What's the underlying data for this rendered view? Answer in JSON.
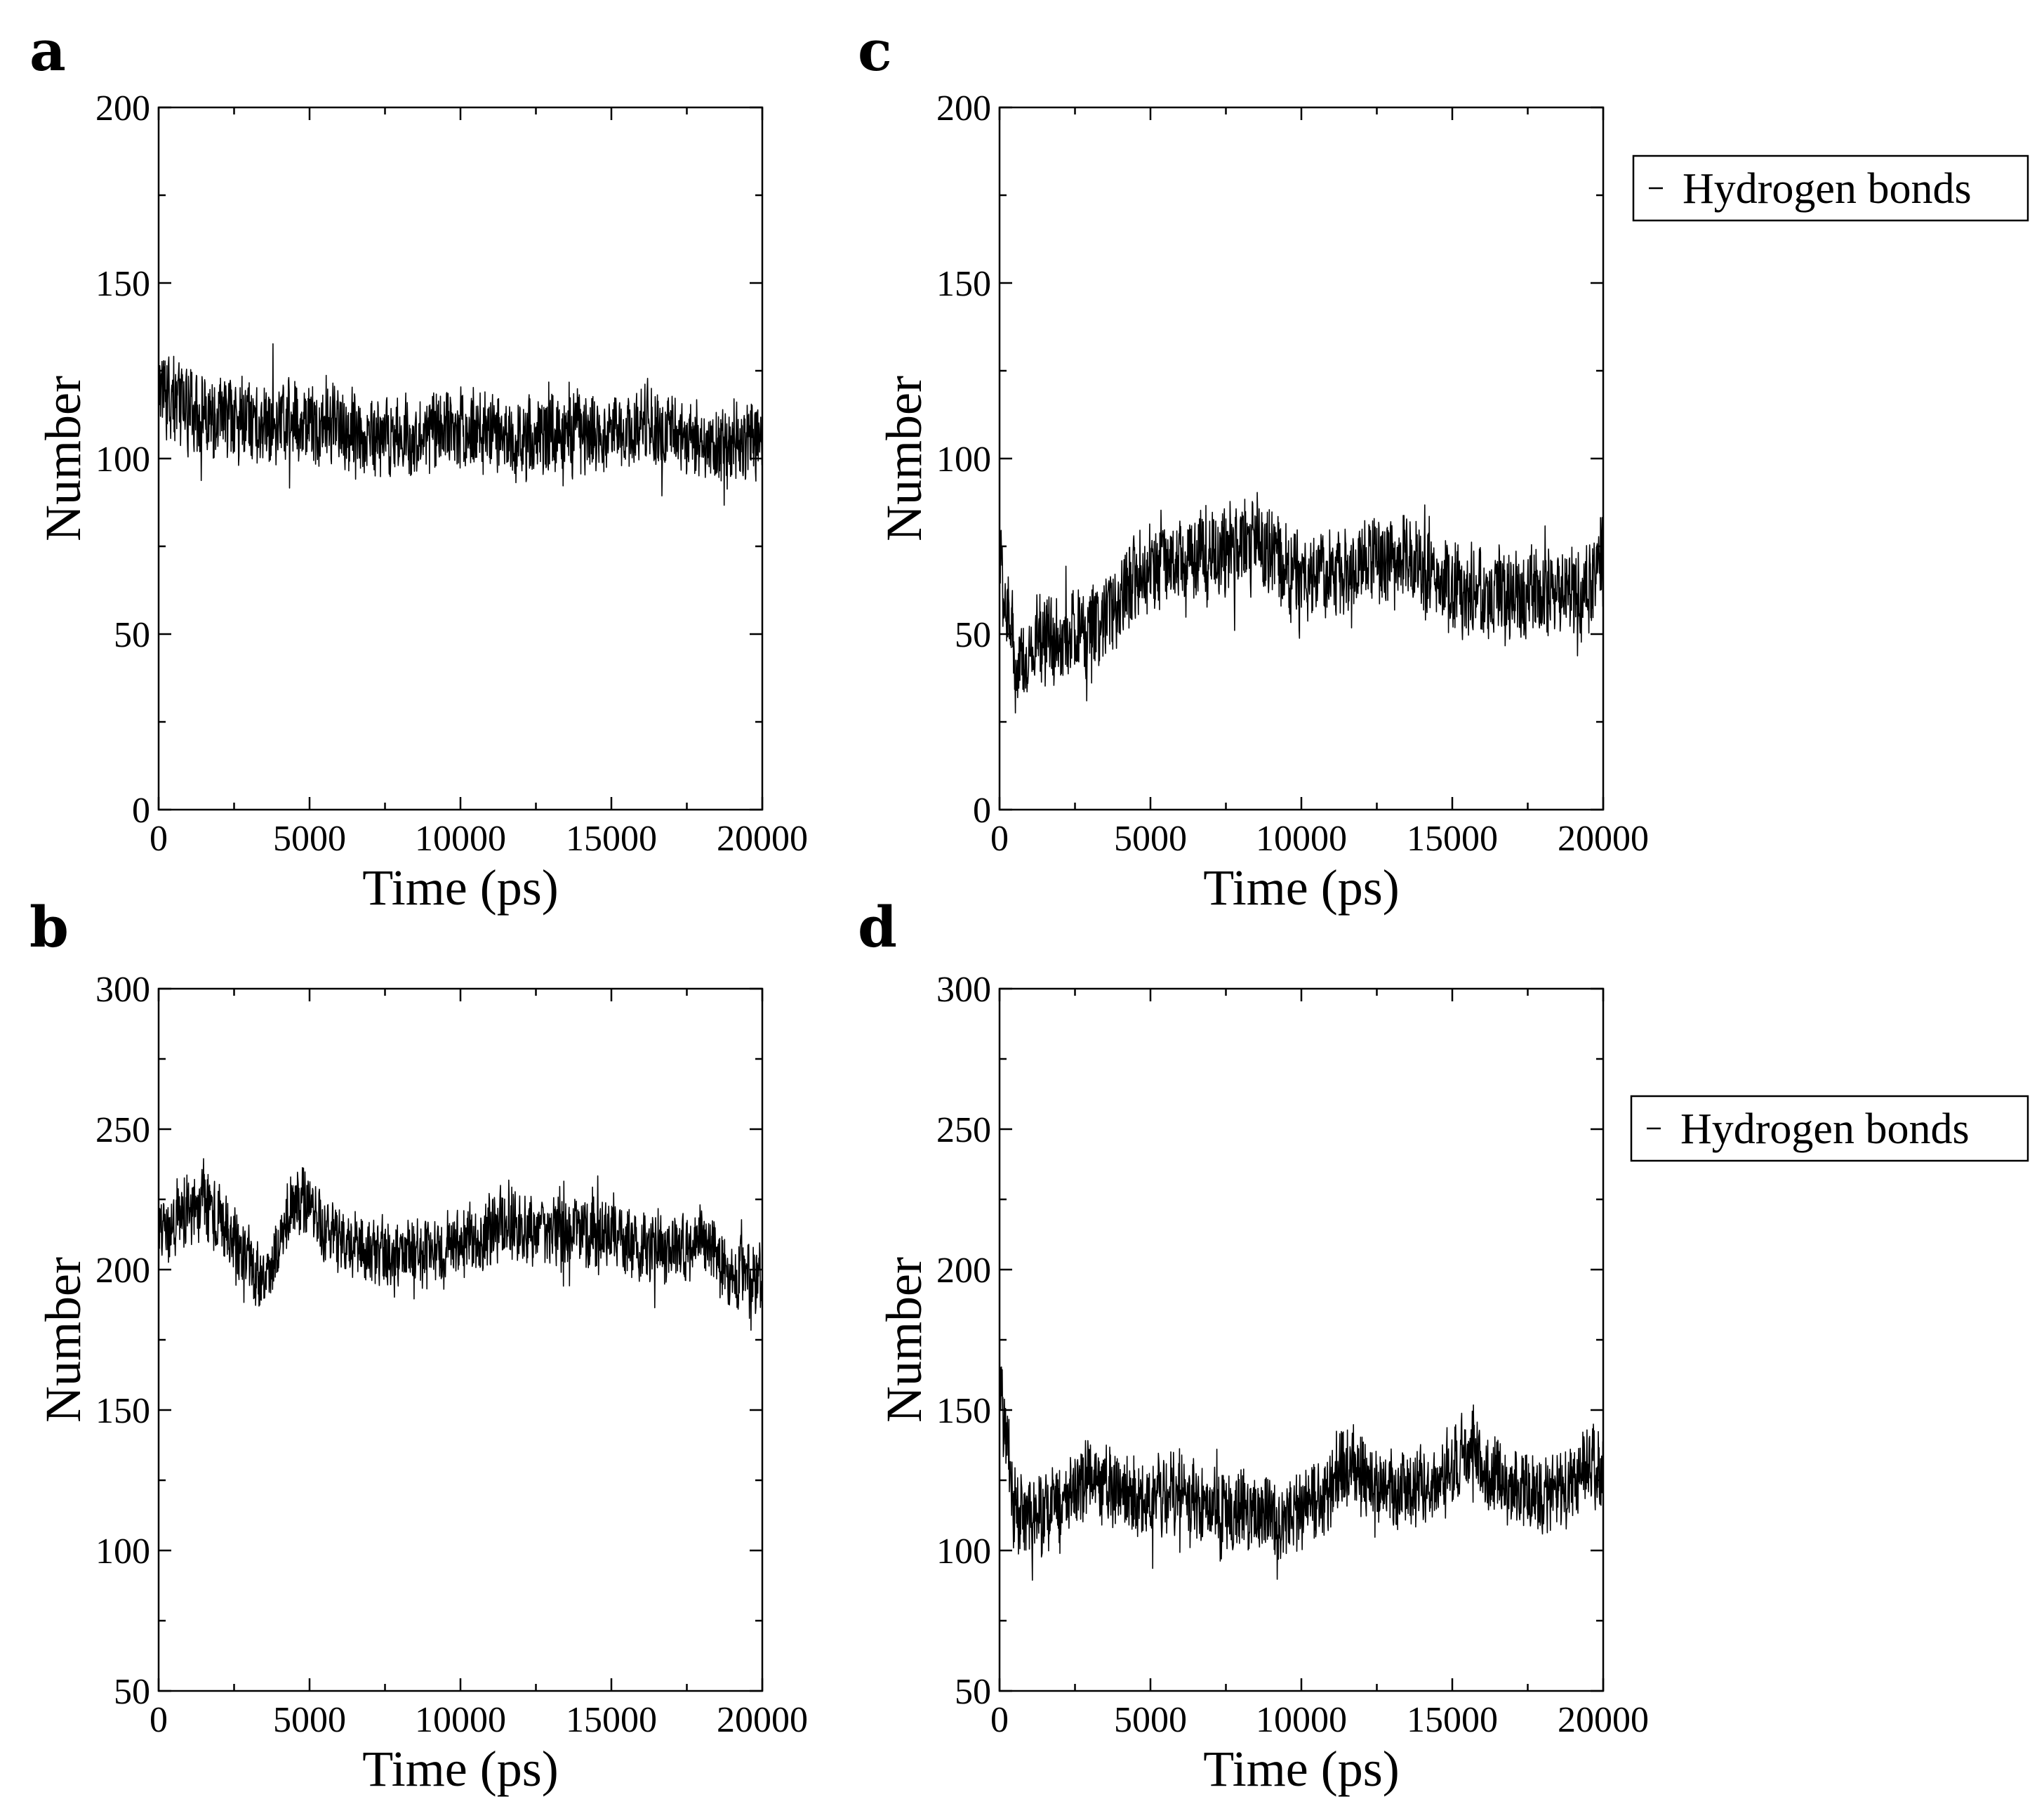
{
  "chart_data": [
    {
      "panel": "a",
      "type": "line",
      "xlabel": "Time (ps)",
      "ylabel": "Number",
      "xlim": [
        0,
        20000
      ],
      "ylim": [
        0,
        200
      ],
      "xticks": [
        "0",
        "5000",
        "10000",
        "15000",
        "20000"
      ],
      "yticks": [
        "0",
        "50",
        "100",
        "150",
        "200"
      ],
      "legend": null,
      "series": [
        {
          "name": "Hydrogen bonds",
          "x": [
            0,
            500,
            1000,
            1500,
            2000,
            2500,
            3000,
            3500,
            4000,
            4500,
            5000,
            5500,
            6000,
            6500,
            7000,
            7500,
            8000,
            8500,
            9000,
            9500,
            10000,
            10500,
            11000,
            11500,
            12000,
            12500,
            13000,
            13500,
            14000,
            14500,
            15000,
            15500,
            16000,
            16500,
            17000,
            17500,
            18000,
            18500,
            19000,
            19500,
            20000
          ],
          "mean": [
            122,
            117,
            114,
            112,
            111,
            111,
            110,
            110,
            111,
            111,
            111,
            110,
            109,
            108,
            107,
            106,
            105,
            106,
            108,
            110,
            109,
            108,
            107,
            107,
            106,
            106,
            106,
            106,
            107,
            107,
            108,
            108,
            108,
            109,
            110,
            106,
            104,
            102,
            104,
            105,
            106
          ],
          "spread": 10
        }
      ]
    },
    {
      "panel": "b",
      "type": "line",
      "xlabel": "Time (ps)",
      "ylabel": "Number",
      "xlim": [
        0,
        20000
      ],
      "ylim": [
        50,
        300
      ],
      "xticks": [
        "0",
        "5000",
        "10000",
        "15000",
        "20000"
      ],
      "yticks": [
        "50",
        "100",
        "150",
        "200",
        "250",
        "300"
      ],
      "legend": null,
      "series": [
        {
          "name": "Hydrogen bonds",
          "x": [
            0,
            500,
            1000,
            1500,
            2000,
            2500,
            3000,
            3500,
            4000,
            4500,
            5000,
            5500,
            6000,
            6500,
            7000,
            7500,
            8000,
            8500,
            9000,
            9500,
            10000,
            10500,
            11000,
            11500,
            12000,
            12500,
            13000,
            13500,
            14000,
            14500,
            15000,
            15500,
            16000,
            16500,
            17000,
            17500,
            18000,
            18500,
            19000,
            19500,
            20000
          ],
          "mean": [
            214,
            216,
            218,
            224,
            218,
            210,
            202,
            193,
            210,
            226,
            222,
            214,
            210,
            208,
            207,
            206,
            205,
            206,
            208,
            208,
            209,
            210,
            212,
            218,
            214,
            213,
            214,
            214,
            213,
            212,
            213,
            211,
            208,
            205,
            206,
            208,
            210,
            206,
            198,
            198,
            198
          ],
          "spread": 11
        }
      ]
    },
    {
      "panel": "c",
      "type": "line",
      "xlabel": "Time (ps)",
      "ylabel": "Number",
      "xlim": [
        0,
        20000
      ],
      "ylim": [
        0,
        200
      ],
      "xticks": [
        "0",
        "5000",
        "10000",
        "15000",
        "20000"
      ],
      "yticks": [
        "0",
        "50",
        "100",
        "150",
        "200"
      ],
      "legend": "Hydrogen bonds",
      "series": [
        {
          "name": "Hydrogen bonds",
          "x": [
            0,
            500,
            1000,
            1500,
            2000,
            2500,
            3000,
            3500,
            4000,
            4500,
            5000,
            5500,
            6000,
            6500,
            7000,
            7500,
            8000,
            8500,
            9000,
            9500,
            10000,
            10500,
            11000,
            11500,
            12000,
            12500,
            13000,
            13500,
            14000,
            14500,
            15000,
            15500,
            16000,
            16500,
            17000,
            17500,
            18000,
            18500,
            19000,
            19500,
            20000
          ],
          "mean": [
            70,
            42,
            44,
            46,
            48,
            50,
            52,
            55,
            60,
            65,
            69,
            71,
            72,
            72,
            74,
            73,
            75,
            77,
            72,
            69,
            67,
            66,
            67,
            68,
            71,
            72,
            71,
            70,
            68,
            67,
            62,
            61,
            61,
            61,
            62,
            62,
            61,
            61,
            61,
            63,
            66
          ],
          "spread": 11
        }
      ]
    },
    {
      "panel": "d",
      "type": "line",
      "xlabel": "Time (ps)",
      "ylabel": "Number",
      "xlim": [
        0,
        20000
      ],
      "ylim": [
        50,
        300
      ],
      "xticks": [
        "0",
        "5000",
        "10000",
        "15000",
        "20000"
      ],
      "yticks": [
        "50",
        "100",
        "150",
        "200",
        "250",
        "300"
      ],
      "legend": "Hydrogen bonds",
      "series": [
        {
          "name": "Hydrogen bonds",
          "x": [
            0,
            500,
            1000,
            1500,
            2000,
            2500,
            3000,
            3500,
            4000,
            4500,
            5000,
            5500,
            6000,
            6500,
            7000,
            7500,
            8000,
            8500,
            9000,
            9500,
            10000,
            10500,
            11000,
            11500,
            12000,
            12500,
            13000,
            13500,
            14000,
            14500,
            15000,
            15500,
            16000,
            16500,
            17000,
            17500,
            18000,
            18500,
            19000,
            19500,
            20000
          ],
          "mean": [
            160,
            113,
            112,
            113,
            116,
            123,
            126,
            124,
            121,
            120,
            118,
            120,
            121,
            118,
            114,
            112,
            113,
            114,
            113,
            112,
            114,
            118,
            122,
            132,
            126,
            123,
            122,
            121,
            123,
            125,
            130,
            136,
            130,
            124,
            122,
            121,
            120,
            120,
            122,
            130,
            128
          ],
          "spread": 12
        }
      ]
    }
  ]
}
